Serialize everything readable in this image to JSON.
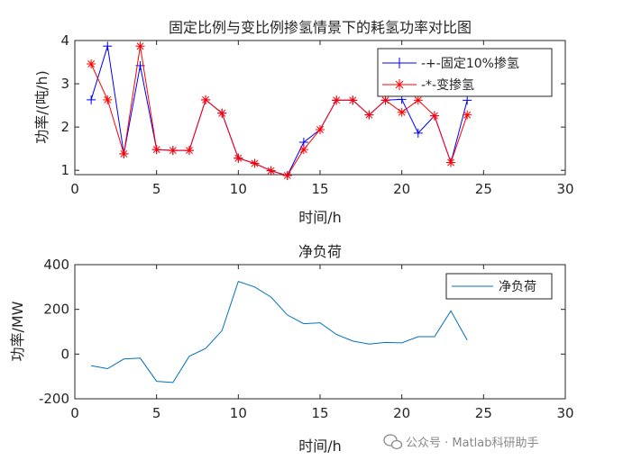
{
  "chart_data": [
    {
      "type": "line",
      "title": "固定比例与变比例掺氢情景下的耗氢功率对比图",
      "xlabel": "时间/h",
      "ylabel": "功率/(吨/h)",
      "xlim": [
        0,
        30
      ],
      "ylim": [
        0.9,
        4
      ],
      "xticks": [
        "0",
        "5",
        "10",
        "15",
        "20",
        "25",
        "30"
      ],
      "yticks": [
        "1",
        "2",
        "3",
        "4"
      ],
      "x": [
        1,
        2,
        3,
        4,
        5,
        6,
        7,
        8,
        9,
        10,
        11,
        12,
        13,
        14,
        15,
        16,
        17,
        18,
        19,
        20,
        21,
        22,
        23,
        24
      ],
      "series": [
        {
          "name": "-+-固定10%掺氢",
          "color": "#0000ff",
          "marker": "+",
          "values": [
            2.63,
            3.87,
            1.38,
            3.42,
            1.48,
            1.46,
            1.46,
            2.63,
            2.32,
            1.28,
            1.16,
            0.99,
            0.88,
            1.65,
            1.94,
            2.62,
            2.62,
            2.28,
            2.62,
            2.64,
            1.86,
            2.26,
            1.18,
            2.62
          ]
        },
        {
          "name": "-*-变掺氢",
          "color": "#ff0000",
          "marker": "*",
          "values": [
            3.46,
            2.63,
            1.38,
            3.87,
            1.48,
            1.46,
            1.46,
            2.63,
            2.32,
            1.28,
            1.16,
            0.99,
            0.88,
            1.48,
            1.94,
            2.62,
            2.62,
            2.28,
            2.62,
            2.34,
            2.62,
            2.26,
            1.18,
            2.28
          ]
        }
      ],
      "legend_position": "top-right"
    },
    {
      "type": "line",
      "title": "净负荷",
      "xlabel": "时间/h",
      "ylabel": "功率/MW",
      "xlim": [
        0,
        30
      ],
      "ylim": [
        -200,
        400
      ],
      "xticks": [
        "0",
        "5",
        "10",
        "15",
        "20",
        "25",
        "30"
      ],
      "yticks": [
        "-200",
        "0",
        "200",
        "400"
      ],
      "x": [
        1,
        2,
        3,
        4,
        5,
        6,
        7,
        8,
        9,
        10,
        11,
        12,
        13,
        14,
        15,
        16,
        17,
        18,
        19,
        20,
        21,
        22,
        23,
        24
      ],
      "series": [
        {
          "name": "净负荷",
          "color": "#0072bd",
          "values": [
            -52,
            -65,
            -22,
            -18,
            -122,
            -127,
            -10,
            25,
            105,
            325,
            300,
            255,
            175,
            136,
            140,
            88,
            58,
            45,
            52,
            50,
            78,
            78,
            193,
            62
          ]
        }
      ],
      "legend_position": "top-right"
    }
  ],
  "watermark": "公众号 · Matlab科研助手"
}
